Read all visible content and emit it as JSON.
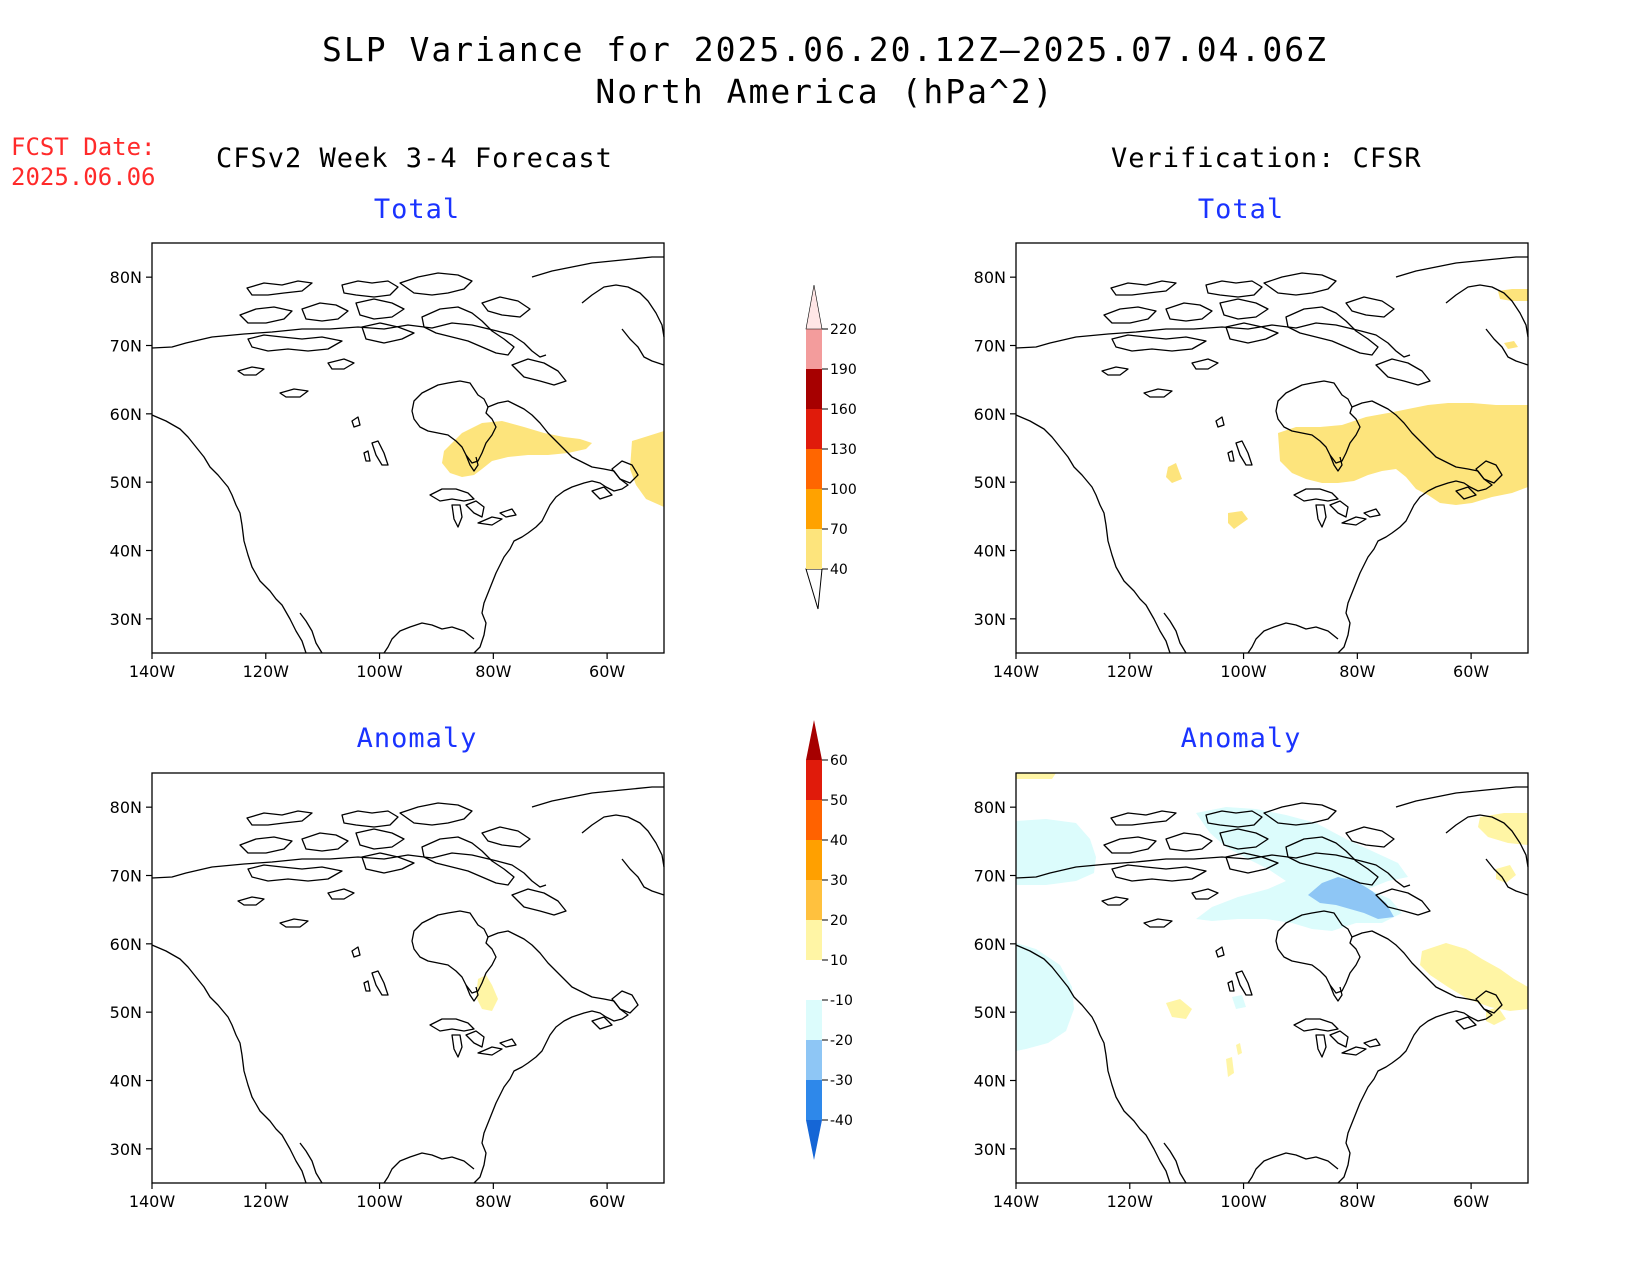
{
  "header": {
    "title": "SLP Variance for 2025.06.20.12Z—2025.07.04.06Z",
    "subtitle": "North America (hPa^2)"
  },
  "fcst_date": {
    "label": "FCST Date:",
    "value": "2025.06.06"
  },
  "columns": {
    "left": "CFSv2 Week 3-4 Forecast",
    "right": "Verification: CFSR"
  },
  "panels": {
    "fcst_total": {
      "title": "Total"
    },
    "fcst_anomaly": {
      "title": "Anomaly"
    },
    "verif_total": {
      "title": "Total"
    },
    "verif_anomaly": {
      "title": "Anomaly"
    }
  },
  "map_axes": {
    "lat_ticks": [
      "80N",
      "70N",
      "60N",
      "50N",
      "40N",
      "30N"
    ],
    "lon_ticks": [
      "140W",
      "120W",
      "100W",
      "80W",
      "60W"
    ],
    "lon_range": [
      -140,
      -50
    ],
    "lat_range": [
      25,
      85
    ]
  },
  "colorbars": {
    "total": {
      "labels": [
        "40",
        "70",
        "100",
        "130",
        "160",
        "190",
        "220"
      ],
      "colors": [
        "#fde47c",
        "#ffa200",
        "#ff6600",
        "#e01b0b",
        "#a60000",
        "#f39c9c",
        "#ffe6e6"
      ],
      "lower_end": "#ffffff"
    },
    "anomaly": {
      "labels": [
        "-40",
        "-30",
        "-20",
        "-10",
        "10",
        "20",
        "30",
        "40",
        "50",
        "60"
      ],
      "colors": [
        "#1566d6",
        "#2e88ea",
        "#8ec6f5",
        "#dcfcfc",
        "#ffffff",
        "#fff5a5",
        "#ffc13e",
        "#ffa000",
        "#ff6200",
        "#e01b0b",
        "#a60000"
      ]
    }
  },
  "fill_colors": {
    "total_40_70": "#fde47c",
    "anom_pos_10_20": "#fff5a5",
    "anom_neg_10_20": "#dcfcfc",
    "anom_neg_20_30": "#8ec6f5"
  }
}
